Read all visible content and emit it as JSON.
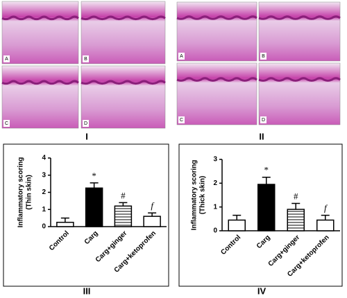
{
  "histology": [
    {
      "label": "I",
      "images": [
        "A",
        "B",
        "C",
        "D"
      ]
    },
    {
      "label": "II",
      "images": [
        "A",
        "B",
        "C",
        "D"
      ]
    }
  ],
  "chart_data": [
    {
      "type": "bar",
      "panel_label": "III",
      "ylabel_lines": [
        "Inflammatory scoring",
        "(Thin skin)"
      ],
      "categories": [
        "Control",
        "Carg",
        "Carg+ginger",
        "Carg+ketoprofen"
      ],
      "values": [
        0.25,
        2.25,
        1.2,
        0.6
      ],
      "errors": [
        0.25,
        0.3,
        0.2,
        0.2
      ],
      "annotations": [
        null,
        "*",
        "#",
        "f"
      ],
      "fills": [
        "white",
        "black",
        "hlines",
        "white"
      ],
      "ylim": [
        0,
        4
      ],
      "yticks": [
        0,
        1,
        2,
        3,
        4
      ]
    },
    {
      "type": "bar",
      "panel_label": "IV",
      "ylabel_lines": [
        "Inflammatory scoring",
        "(Thick skin)"
      ],
      "categories": [
        "Control",
        "Carg",
        "Carg+ginger",
        "Carg+ketoprofen"
      ],
      "values": [
        0.45,
        1.95,
        0.9,
        0.45
      ],
      "errors": [
        0.2,
        0.3,
        0.25,
        0.2
      ],
      "annotations": [
        null,
        "*",
        "#",
        "f"
      ],
      "fills": [
        "white",
        "black",
        "hlines",
        "white"
      ],
      "ylim": [
        0,
        3
      ],
      "yticks": [
        0,
        1,
        2,
        3
      ]
    }
  ]
}
